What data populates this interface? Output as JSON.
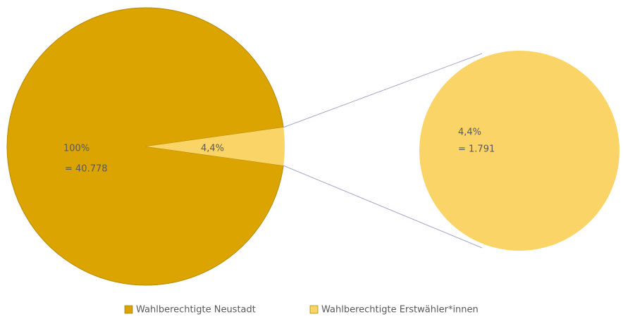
{
  "chart_data": {
    "type": "pie-of-pie",
    "slices": [
      {
        "name": "Wahlberechtigte Neustadt",
        "color": "#dba400",
        "percent": 100,
        "percent_label": "100%",
        "count": 40778,
        "count_label": "= 40.778"
      },
      {
        "name": "Wahlberechtigte Erstwähler*innen",
        "color": "#fbd467",
        "percent": 4.4,
        "percent_label": "4,4%",
        "count": 1791,
        "count_label": "= 1.791"
      }
    ]
  }
}
